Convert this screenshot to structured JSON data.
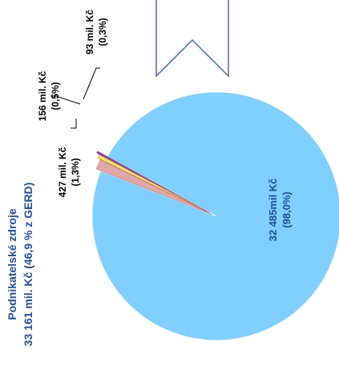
{
  "chart_data": {
    "type": "pie",
    "title_lines": [
      "Podnikatelské zdroje",
      "33 161 mil. Kč (46,9 % z GERD)"
    ],
    "slices": [
      {
        "value": 32485,
        "percent": 98.0,
        "label_value": "32 485mil Kč",
        "label_pct": "(98,0%)",
        "color": "#7fcfff"
      },
      {
        "value": 427,
        "percent": 1.3,
        "label_value": "427 mil. Kč",
        "label_pct": "(1,3%)",
        "color": "#dea8a8"
      },
      {
        "value": 156,
        "percent": 0.5,
        "label_value": "156 mil. Kč",
        "label_pct": "(0,5%)",
        "color": "#f6e266"
      },
      {
        "value": 93,
        "percent": 0.3,
        "label_value": "93 mil. Kč",
        "label_pct": "(0,3%)",
        "color": "#7a3ea8"
      }
    ]
  },
  "colors": {
    "big_label": "#1f4e9a",
    "title": "#1f4e9a",
    "small_labels": "#000000",
    "connector": "#000000"
  }
}
